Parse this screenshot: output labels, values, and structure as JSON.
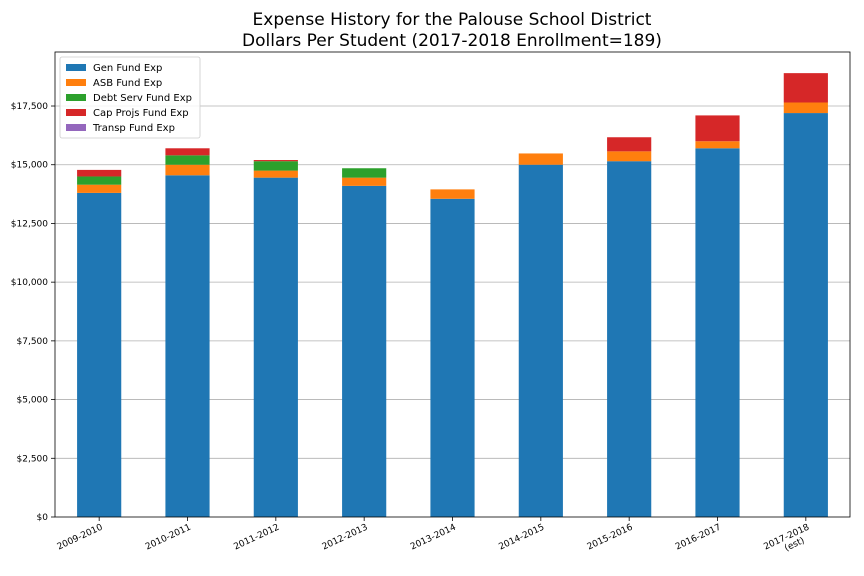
{
  "chart_data": {
    "type": "bar",
    "stacked": true,
    "title": "Expense History for the Palouse School District",
    "subtitle": "Dollars Per Student (2017-2018 Enrollment=189)",
    "xlabel": "",
    "ylabel": "",
    "ylim": [
      0,
      19800
    ],
    "yticks": [
      0,
      2500,
      5000,
      7500,
      10000,
      12500,
      15000,
      17500
    ],
    "ytick_labels": [
      "$0",
      "$2,500",
      "$5,000",
      "$7,500",
      "$10,000",
      "$12,500",
      "$15,000",
      "$17,500"
    ],
    "categories": [
      "2009-2010",
      "2010-2011",
      "2011-2012",
      "2012-2013",
      "2013-2014",
      "2014-2015",
      "2015-2016",
      "2016-2017",
      "2017-2018\n(est)"
    ],
    "grid": "y",
    "legend_position": "top-left",
    "series": [
      {
        "name": "Gen Fund Exp",
        "color": "#1f77b4",
        "values": [
          13800,
          14550,
          14450,
          14100,
          13550,
          15000,
          15150,
          15700,
          17200
        ]
      },
      {
        "name": "ASB Fund Exp",
        "color": "#ff7f0e",
        "values": [
          350,
          450,
          300,
          350,
          400,
          480,
          420,
          300,
          450
        ]
      },
      {
        "name": "Debt Serv Fund Exp",
        "color": "#2ca02c",
        "values": [
          350,
          400,
          400,
          400,
          0,
          0,
          0,
          0,
          0
        ]
      },
      {
        "name": "Cap Projs Fund Exp",
        "color": "#d62728",
        "values": [
          280,
          300,
          50,
          0,
          0,
          0,
          600,
          1100,
          1250
        ]
      },
      {
        "name": "Transp Fund Exp",
        "color": "#9467bd",
        "values": [
          0,
          0,
          0,
          0,
          0,
          0,
          0,
          0,
          0
        ]
      }
    ]
  }
}
